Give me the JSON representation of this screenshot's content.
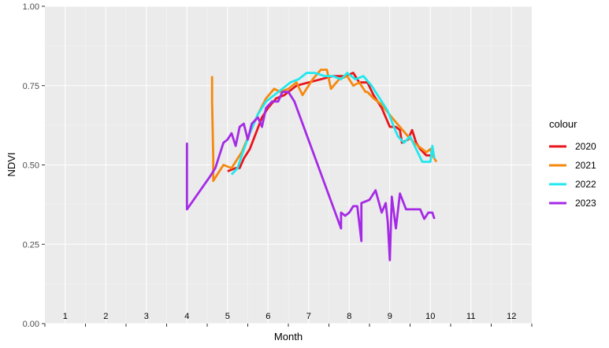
{
  "chart_data": {
    "type": "line",
    "xlabel": "Month",
    "ylabel": "NDVI",
    "xlim": [
      0.5,
      12.5
    ],
    "ylim": [
      0,
      1
    ],
    "x_ticks": [
      1,
      2,
      3,
      4,
      5,
      6,
      7,
      8,
      9,
      10,
      11,
      12
    ],
    "y_ticks": [
      0.0,
      0.25,
      0.5,
      0.75,
      1.0
    ],
    "y_tick_labels": [
      "0.00",
      "0.25",
      "0.50",
      "0.75",
      "1.00"
    ],
    "x_tick_labels_inside_panel": true,
    "grid": true,
    "legend": {
      "title": "colour",
      "placement": "right"
    },
    "series": [
      {
        "name": "2020",
        "color": "#e8141c",
        "points": [
          [
            5.0,
            0.48
          ],
          [
            5.2,
            0.49
          ],
          [
            5.3,
            0.49
          ],
          [
            5.4,
            0.52
          ],
          [
            5.55,
            0.55
          ],
          [
            5.7,
            0.6
          ],
          [
            5.85,
            0.65
          ],
          [
            6.0,
            0.68
          ],
          [
            6.2,
            0.71
          ],
          [
            6.4,
            0.72
          ],
          [
            6.7,
            0.75
          ],
          [
            7.0,
            0.76
          ],
          [
            7.3,
            0.77
          ],
          [
            7.6,
            0.78
          ],
          [
            7.9,
            0.78
          ],
          [
            8.1,
            0.79
          ],
          [
            8.25,
            0.76
          ],
          [
            8.45,
            0.76
          ],
          [
            8.6,
            0.72
          ],
          [
            8.8,
            0.68
          ],
          [
            9.0,
            0.62
          ],
          [
            9.15,
            0.62
          ],
          [
            9.25,
            0.61
          ],
          [
            9.3,
            0.57
          ],
          [
            9.45,
            0.58
          ],
          [
            9.55,
            0.61
          ],
          [
            9.65,
            0.57
          ],
          [
            9.75,
            0.55
          ],
          [
            9.9,
            0.53
          ],
          [
            10.1,
            0.53
          ]
        ]
      },
      {
        "name": "2021",
        "color": "#f5880f",
        "points": [
          [
            4.62,
            0.78
          ],
          [
            4.62,
            0.7
          ],
          [
            4.65,
            0.52
          ],
          [
            4.65,
            0.45
          ],
          [
            4.8,
            0.48
          ],
          [
            4.9,
            0.5
          ],
          [
            5.1,
            0.49
          ],
          [
            5.25,
            0.52
          ],
          [
            5.35,
            0.54
          ],
          [
            5.55,
            0.6
          ],
          [
            5.75,
            0.66
          ],
          [
            5.95,
            0.71
          ],
          [
            6.15,
            0.74
          ],
          [
            6.3,
            0.73
          ],
          [
            6.5,
            0.74
          ],
          [
            6.7,
            0.76
          ],
          [
            6.85,
            0.72
          ],
          [
            7.1,
            0.77
          ],
          [
            7.3,
            0.8
          ],
          [
            7.45,
            0.8
          ],
          [
            7.55,
            0.74
          ],
          [
            7.75,
            0.77
          ],
          [
            7.95,
            0.78
          ],
          [
            8.1,
            0.75
          ],
          [
            8.25,
            0.76
          ],
          [
            8.4,
            0.73
          ],
          [
            8.45,
            0.73
          ],
          [
            8.6,
            0.71
          ],
          [
            8.8,
            0.69
          ],
          [
            9.05,
            0.65
          ],
          [
            9.25,
            0.62
          ],
          [
            9.45,
            0.59
          ],
          [
            9.6,
            0.57
          ],
          [
            9.8,
            0.55
          ],
          [
            9.9,
            0.54
          ],
          [
            10.0,
            0.55
          ],
          [
            10.05,
            0.53
          ],
          [
            10.15,
            0.51
          ]
        ]
      },
      {
        "name": "2022",
        "color": "#1fe8ee",
        "points": [
          [
            5.1,
            0.47
          ],
          [
            5.25,
            0.49
          ],
          [
            5.35,
            0.53
          ],
          [
            5.55,
            0.6
          ],
          [
            5.75,
            0.66
          ],
          [
            5.95,
            0.7
          ],
          [
            6.15,
            0.72
          ],
          [
            6.35,
            0.74
          ],
          [
            6.55,
            0.76
          ],
          [
            6.75,
            0.77
          ],
          [
            6.95,
            0.79
          ],
          [
            7.15,
            0.79
          ],
          [
            7.4,
            0.78
          ],
          [
            7.6,
            0.78
          ],
          [
            7.8,
            0.77
          ],
          [
            7.95,
            0.79
          ],
          [
            8.15,
            0.77
          ],
          [
            8.35,
            0.78
          ],
          [
            8.55,
            0.75
          ],
          [
            8.75,
            0.71
          ],
          [
            8.95,
            0.67
          ],
          [
            9.1,
            0.62
          ],
          [
            9.2,
            0.59
          ],
          [
            9.35,
            0.57
          ],
          [
            9.5,
            0.59
          ],
          [
            9.65,
            0.55
          ],
          [
            9.8,
            0.51
          ],
          [
            10.0,
            0.51
          ],
          [
            10.05,
            0.56
          ],
          [
            10.1,
            0.52
          ]
        ]
      },
      {
        "name": "2023",
        "color": "#a52ae6",
        "points": [
          [
            4.0,
            0.57
          ],
          [
            4.0,
            0.36
          ],
          [
            4.55,
            0.46
          ],
          [
            4.7,
            0.49
          ],
          [
            4.9,
            0.57
          ],
          [
            5.0,
            0.58
          ],
          [
            5.1,
            0.6
          ],
          [
            5.2,
            0.56
          ],
          [
            5.3,
            0.62
          ],
          [
            5.4,
            0.63
          ],
          [
            5.5,
            0.58
          ],
          [
            5.6,
            0.63
          ],
          [
            5.75,
            0.65
          ],
          [
            5.85,
            0.62
          ],
          [
            5.95,
            0.68
          ],
          [
            6.1,
            0.7
          ],
          [
            6.25,
            0.7
          ],
          [
            6.35,
            0.73
          ],
          [
            6.5,
            0.73
          ],
          [
            6.65,
            0.7
          ],
          [
            7.8,
            0.3
          ],
          [
            7.8,
            0.35
          ],
          [
            7.9,
            0.34
          ],
          [
            8.0,
            0.35
          ],
          [
            8.1,
            0.37
          ],
          [
            8.2,
            0.37
          ],
          [
            8.3,
            0.26
          ],
          [
            8.3,
            0.38
          ],
          [
            8.5,
            0.39
          ],
          [
            8.65,
            0.42
          ],
          [
            8.8,
            0.35
          ],
          [
            8.9,
            0.38
          ],
          [
            8.95,
            0.32
          ],
          [
            9.0,
            0.2
          ],
          [
            9.05,
            0.4
          ],
          [
            9.15,
            0.3
          ],
          [
            9.25,
            0.41
          ],
          [
            9.4,
            0.36
          ],
          [
            9.6,
            0.36
          ],
          [
            9.75,
            0.36
          ],
          [
            9.85,
            0.33
          ],
          [
            9.95,
            0.35
          ],
          [
            10.05,
            0.35
          ],
          [
            10.1,
            0.33
          ]
        ]
      }
    ]
  }
}
